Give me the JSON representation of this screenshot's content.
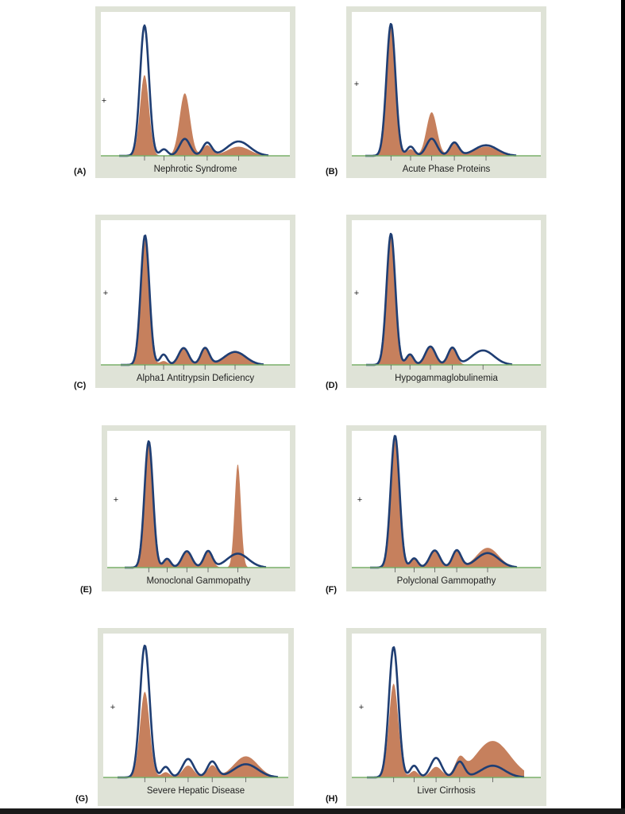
{
  "figure": {
    "plus_marker": "+",
    "colors": {
      "panel_frame": "#dfe3d7",
      "patient_fill": "#c6805d",
      "reference_line": "#1f3e73",
      "baseline": "#7ab06a",
      "tick": "#555555"
    }
  },
  "chart_data": [
    {
      "type": "line",
      "panel_label": "(A)",
      "caption": "Nephrotic Syndrome",
      "x_fractions": [
        0.49,
        0.69,
        0.8,
        0.89,
        1.0
      ],
      "reference_heights": [
        1.0,
        0.05,
        0.13,
        0.1,
        0.11
      ],
      "patient_heights": [
        0.62,
        0.0,
        0.48,
        0.08,
        0.07
      ]
    },
    {
      "type": "line",
      "panel_label": "(B)",
      "caption": "Acute Phase Proteins",
      "x_fractions": [
        0.49,
        0.69,
        0.8,
        0.89,
        1.0
      ],
      "reference_heights": [
        1.0,
        0.07,
        0.13,
        0.1,
        0.08
      ],
      "patient_heights": [
        1.0,
        0.05,
        0.33,
        0.1,
        0.07
      ]
    },
    {
      "type": "line",
      "panel_label": "(C)",
      "caption": "Alpha1 Antitrypsin Deficiency",
      "x_fractions": [
        0.49,
        0.69,
        0.8,
        0.89,
        1.0
      ],
      "reference_heights": [
        1.0,
        0.08,
        0.13,
        0.13,
        0.1
      ],
      "patient_heights": [
        1.0,
        0.03,
        0.13,
        0.13,
        0.1
      ]
    },
    {
      "type": "line",
      "panel_label": "(D)",
      "caption": "Hypogammaglobulinemia",
      "x_fractions": [
        0.49,
        0.69,
        0.8,
        0.89,
        1.0
      ],
      "reference_heights": [
        1.0,
        0.08,
        0.14,
        0.13,
        0.11
      ],
      "patient_heights": [
        1.0,
        0.08,
        0.14,
        0.13,
        0.0
      ]
    },
    {
      "type": "line",
      "panel_label": "(E)",
      "caption": "Monoclonal Gammopathy",
      "x_fractions": [
        0.49,
        0.69,
        0.8,
        0.89,
        1.0
      ],
      "reference_heights": [
        1.0,
        0.07,
        0.13,
        0.13,
        0.11
      ],
      "patient_heights": [
        1.0,
        0.07,
        0.13,
        0.13,
        0.82
      ]
    },
    {
      "type": "line",
      "panel_label": "(F)",
      "caption": "Polyclonal Gammopathy",
      "x_fractions": [
        0.49,
        0.69,
        0.8,
        0.89,
        1.0
      ],
      "reference_heights": [
        1.0,
        0.07,
        0.13,
        0.13,
        0.11
      ],
      "patient_heights": [
        1.0,
        0.07,
        0.13,
        0.13,
        0.15
      ]
    },
    {
      "type": "line",
      "panel_label": "(G)",
      "caption": "Severe Hepatic Disease",
      "x_fractions": [
        0.49,
        0.69,
        0.8,
        0.89,
        1.0
      ],
      "reference_heights": [
        1.0,
        0.08,
        0.14,
        0.12,
        0.1
      ],
      "patient_heights": [
        0.65,
        0.04,
        0.09,
        0.09,
        0.16
      ]
    },
    {
      "type": "line",
      "panel_label": "(H)",
      "caption": "Liver Cirrhosis",
      "x_fractions": [
        0.49,
        0.69,
        0.8,
        0.89,
        1.0
      ],
      "reference_heights": [
        1.0,
        0.09,
        0.15,
        0.12,
        0.09
      ],
      "patient_heights": [
        0.72,
        0.05,
        0.08,
        0.12,
        0.28
      ]
    }
  ]
}
